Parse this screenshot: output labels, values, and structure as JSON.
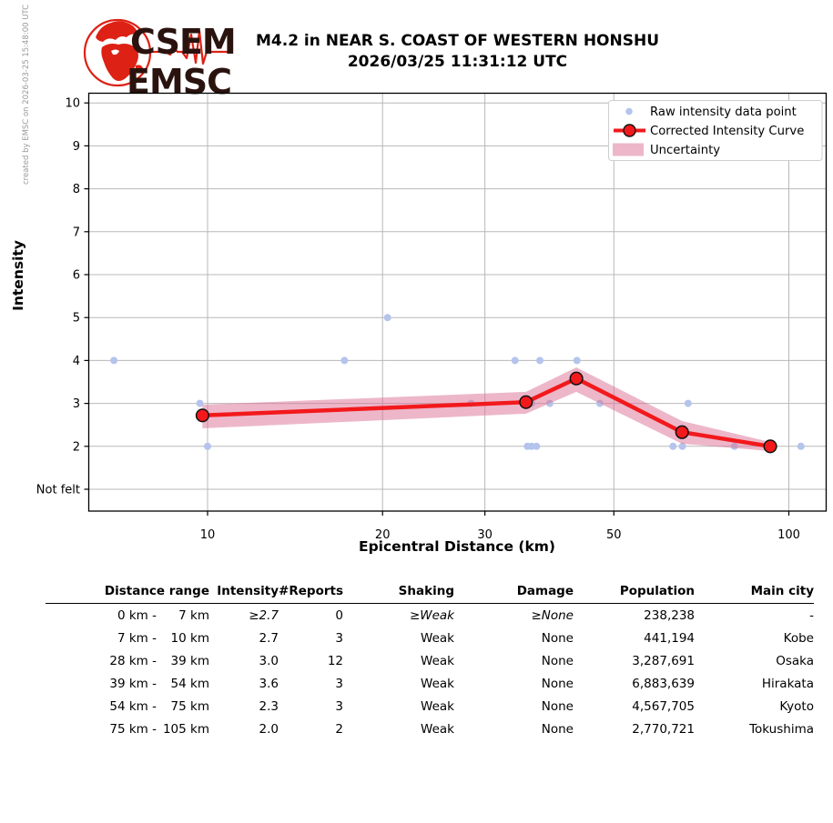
{
  "meta": {
    "created_by": "created by EMSC on 2026-03-25 15:48:00 UTC"
  },
  "logo": {
    "line1": "CSEM",
    "line2": "EMSC"
  },
  "title": {
    "line1": "M4.2 in NEAR S. COAST OF WESTERN HONSHU",
    "line2": "2026/03/25 11:31:12 UTC"
  },
  "chart_data": {
    "type": "scatter",
    "title": "M4.2 in NEAR S. COAST OF WESTERN HONSHU 2026/03/25 11:31:12 UTC",
    "xlabel": "Epicentral Distance (km)",
    "ylabel": "Intensity",
    "x_scale": "log",
    "xlim": [
      6.2,
      116
    ],
    "ylim": [
      0.49,
      10.24
    ],
    "grid": true,
    "x_ticks": [
      10,
      20,
      30,
      50,
      100
    ],
    "y_ticks": [
      {
        "label": "10",
        "value": 10
      },
      {
        "label": "9",
        "value": 9
      },
      {
        "label": "8",
        "value": 8
      },
      {
        "label": "7",
        "value": 7
      },
      {
        "label": "6",
        "value": 6
      },
      {
        "label": "5",
        "value": 5
      },
      {
        "label": "4",
        "value": 4
      },
      {
        "label": "3",
        "value": 3
      },
      {
        "label": "2",
        "value": 2
      },
      {
        "label": "Not felt",
        "value": 1
      }
    ],
    "legend": {
      "position": "upper right",
      "items": [
        {
          "label": "Raw intensity data point",
          "marker": "dot"
        },
        {
          "label": "Corrected Intensity Curve",
          "marker": "line-circle"
        },
        {
          "label": "Uncertainty",
          "marker": "band"
        }
      ]
    },
    "raw_points": [
      {
        "d": 6.9,
        "i": 4
      },
      {
        "d": 9.7,
        "i": 3
      },
      {
        "d": 10,
        "i": 2
      },
      {
        "d": 17.2,
        "i": 4
      },
      {
        "d": 20.4,
        "i": 5
      },
      {
        "d": 28.4,
        "i": 3
      },
      {
        "d": 33.8,
        "i": 4
      },
      {
        "d": 35.5,
        "i": 2
      },
      {
        "d": 36.1,
        "i": 2
      },
      {
        "d": 36.8,
        "i": 2
      },
      {
        "d": 36.1,
        "i": 3
      },
      {
        "d": 37.3,
        "i": 4
      },
      {
        "d": 38.8,
        "i": 3
      },
      {
        "d": 43.2,
        "i": 4
      },
      {
        "d": 47.3,
        "i": 3
      },
      {
        "d": 63.2,
        "i": 2
      },
      {
        "d": 65.6,
        "i": 2
      },
      {
        "d": 67.1,
        "i": 3
      },
      {
        "d": 80.6,
        "i": 2
      },
      {
        "d": 104.9,
        "i": 2
      }
    ],
    "corrected_curve": [
      {
        "d": 9.8,
        "i": 2.72
      },
      {
        "d": 35.3,
        "i": 3.03
      },
      {
        "d": 43.1,
        "i": 3.58
      },
      {
        "d": 65.5,
        "i": 2.33
      },
      {
        "d": 92.9,
        "i": 2.0
      }
    ],
    "uncertainty": [
      {
        "d": 9.8,
        "lo": 2.42,
        "hi": 2.97
      },
      {
        "d": 35.3,
        "lo": 2.76,
        "hi": 3.27
      },
      {
        "d": 43.1,
        "lo": 3.27,
        "hi": 3.84
      },
      {
        "d": 65.5,
        "lo": 2.06,
        "hi": 2.59
      },
      {
        "d": 92.9,
        "lo": 1.89,
        "hi": 2.1
      }
    ],
    "colors": {
      "raw": "#b4c4ec",
      "curve": "#f2191c",
      "curve_marker_edge": "#111111",
      "band": "#db7093",
      "band_opacity": 0.5,
      "grid": "#b8b8b8",
      "axis": "#000000",
      "logo_red": "#dd2114",
      "logo_text": "#2a130e"
    }
  },
  "table": {
    "headers": [
      "Distance range",
      "Intensity",
      "#Reports",
      "Shaking",
      "Damage",
      "Population",
      "Main city"
    ],
    "rows": [
      {
        "range_from": "0 km -",
        "range_to": "7 km",
        "intensity": "≥2.7",
        "reports": "0",
        "shaking": "≥Weak",
        "damage": "≥None",
        "population": "238,238",
        "city": "-",
        "min_values": true
      },
      {
        "range_from": "7 km -",
        "range_to": "10 km",
        "intensity": "2.7",
        "reports": "3",
        "shaking": "Weak",
        "damage": "None",
        "population": "441,194",
        "city": "Kobe",
        "min_values": false
      },
      {
        "range_from": "28 km -",
        "range_to": "39 km",
        "intensity": "3.0",
        "reports": "12",
        "shaking": "Weak",
        "damage": "None",
        "population": "3,287,691",
        "city": "Osaka",
        "min_values": false
      },
      {
        "range_from": "39 km -",
        "range_to": "54 km",
        "intensity": "3.6",
        "reports": "3",
        "shaking": "Weak",
        "damage": "None",
        "population": "6,883,639",
        "city": "Hirakata",
        "min_values": false
      },
      {
        "range_from": "54 km -",
        "range_to": "75 km",
        "intensity": "2.3",
        "reports": "3",
        "shaking": "Weak",
        "damage": "None",
        "population": "4,567,705",
        "city": "Kyoto",
        "min_values": false
      },
      {
        "range_from": "75 km -",
        "range_to": "105 km",
        "intensity": "2.0",
        "reports": "2",
        "shaking": "Weak",
        "damage": "None",
        "population": "2,770,721",
        "city": "Tokushima",
        "min_values": false
      }
    ]
  }
}
